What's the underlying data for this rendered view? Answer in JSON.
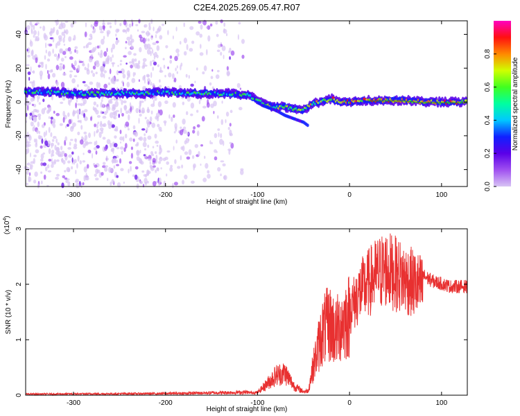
{
  "title": "C2E4.2025.269.05.47.R07",
  "chart_data": [
    {
      "type": "heatmap",
      "xlabel": "Height of straight line (km)",
      "ylabel": "Frequency (Hz)",
      "xlim": [
        -352,
        128
      ],
      "ylim": [
        -50,
        48
      ],
      "xticks": [
        -300,
        -200,
        -100,
        0,
        100
      ],
      "yticks": [
        -40,
        -20,
        0,
        20,
        40
      ],
      "colorbar": {
        "label": "Normalized spectral amplitude",
        "range": [
          0.0,
          1.0
        ],
        "ticks": [
          0.0,
          0.2,
          0.4,
          0.6,
          0.8
        ],
        "colormap": [
          "#d8c4f4",
          "#a050f0",
          "#5a00e8",
          "#1020ff",
          "#00c8ff",
          "#00ffa0",
          "#40ff20",
          "#d0ff00",
          "#ff8800",
          "#ff1010",
          "#ff00c0"
        ]
      },
      "ridge": {
        "x": [
          -350,
          -320,
          -300,
          -270,
          -250,
          -220,
          -200,
          -180,
          -150,
          -130,
          -110,
          -100,
          -90,
          -80,
          -70,
          -60,
          -50,
          -40,
          -30,
          -20,
          -10,
          0,
          20,
          40,
          60,
          80,
          100,
          125
        ],
        "y": [
          6,
          6,
          5,
          5,
          5,
          5,
          6,
          5,
          5,
          5,
          4,
          1,
          -2,
          -3,
          -3,
          -4,
          -5,
          -1,
          0,
          2,
          0,
          0,
          1,
          1,
          1,
          0,
          0,
          0
        ],
        "lower_branch": {
          "x": [
            -95,
            -80,
            -70,
            -60,
            -50,
            -45
          ],
          "y": [
            -2,
            -5,
            -8,
            -10,
            -12,
            -14
          ]
        }
      }
    },
    {
      "type": "line",
      "xlabel": "Height of straight line (km)",
      "ylabel": "SNR (10 * v/v)",
      "scale_note": "(x10",
      "scale_exp": "4",
      "scale_close": ")",
      "xlim": [
        -352,
        128
      ],
      "ylim": [
        0,
        3
      ],
      "xticks": [
        -300,
        -200,
        -100,
        0,
        100
      ],
      "yticks": [
        0,
        1,
        2,
        3
      ],
      "color": "#e83030",
      "envelope": {
        "x": [
          -352,
          -200,
          -120,
          -100,
          -90,
          -80,
          -70,
          -60,
          -50,
          -45,
          -40,
          -35,
          -30,
          -25,
          -20,
          -15,
          -10,
          -5,
          0,
          5,
          10,
          20,
          30,
          40,
          50,
          60,
          70,
          80,
          90,
          100,
          110,
          120,
          128
        ],
        "y": [
          0.02,
          0.03,
          0.05,
          0.06,
          0.25,
          0.45,
          0.5,
          0.2,
          0.08,
          0.1,
          0.6,
          1.0,
          1.4,
          1.55,
          1.6,
          1.4,
          1.6,
          1.7,
          1.8,
          1.9,
          2.1,
          2.3,
          2.5,
          2.6,
          2.5,
          2.4,
          2.3,
          2.2,
          2.1,
          2.05,
          2.0,
          2.0,
          2.0
        ]
      }
    }
  ]
}
